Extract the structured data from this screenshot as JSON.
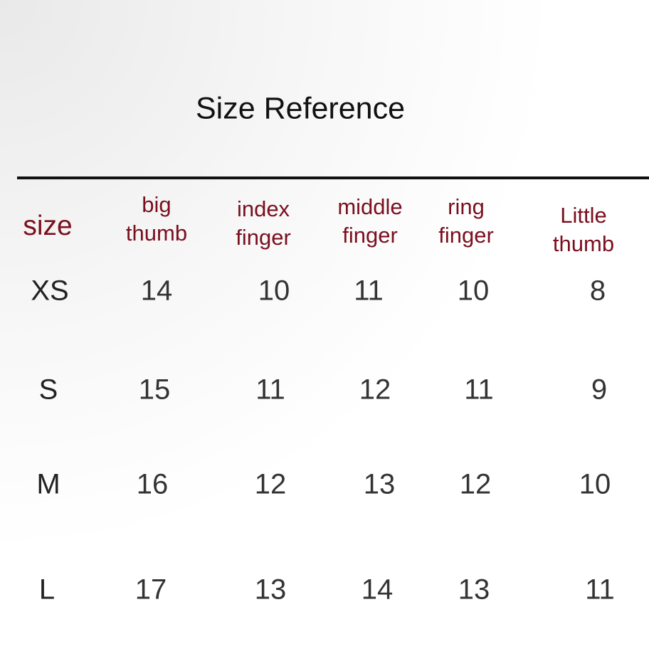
{
  "title": "Size Reference",
  "colors": {
    "header": "#7a0f1e",
    "values": "#333333",
    "title": "#111111"
  },
  "table": {
    "size_header": "size",
    "columns": [
      "big thumb",
      "index finger",
      "middle finger",
      "ring finger",
      "Little thumb"
    ],
    "column_lines": [
      [
        "big",
        "thumb"
      ],
      [
        "index",
        "finger"
      ],
      [
        "middle",
        "finger"
      ],
      [
        "ring",
        "finger"
      ],
      [
        "Little",
        "thumb"
      ]
    ],
    "rows": [
      {
        "size": "XS",
        "values": [
          "14",
          "10",
          "11",
          "10",
          "8"
        ]
      },
      {
        "size": "S",
        "values": [
          "15",
          "11",
          "12",
          "11",
          "9"
        ]
      },
      {
        "size": "M",
        "values": [
          "16",
          "12",
          "13",
          "12",
          "10"
        ]
      },
      {
        "size": "L",
        "values": [
          "17",
          "13",
          "14",
          "13",
          "11"
        ]
      }
    ]
  }
}
